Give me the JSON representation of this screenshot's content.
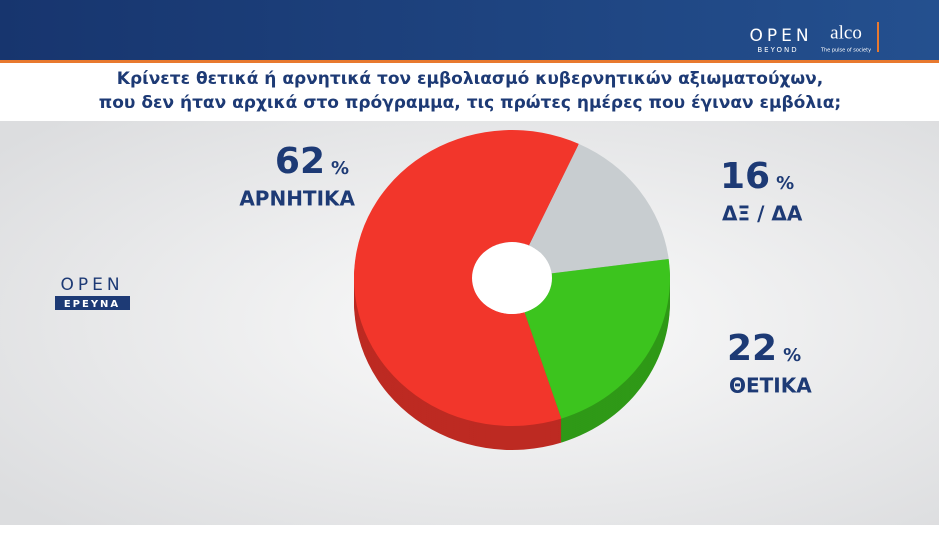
{
  "chart_data": {
    "type": "pie",
    "title": [
      "Κρίνετε θετικά ή αρνητικά τον εμβολιασμό κυβερνητικών αξιωματούχων,",
      "που δεν ήταν αρχικά στο πρόγραμμα, τις πρώτες ημέρες που έγιναν εμβόλια;"
    ],
    "categories": [
      "ΔΞ / ΔΑ",
      "ΘΕΤΙΚΑ",
      "ΑΡΝΗΤΙΚΑ"
    ],
    "values": [
      16,
      22,
      62
    ],
    "unit": "%",
    "colors": [
      "#c8cdd0",
      "#3cc41e",
      "#f2362b"
    ]
  },
  "branding": {
    "channel": "OPEN",
    "channel_sub": "BEYOND",
    "pollster": "alco",
    "pollster_sub": "The pulse of society",
    "section": "OPEN",
    "section_sub": "ΕΡΕΥΝΑ"
  }
}
